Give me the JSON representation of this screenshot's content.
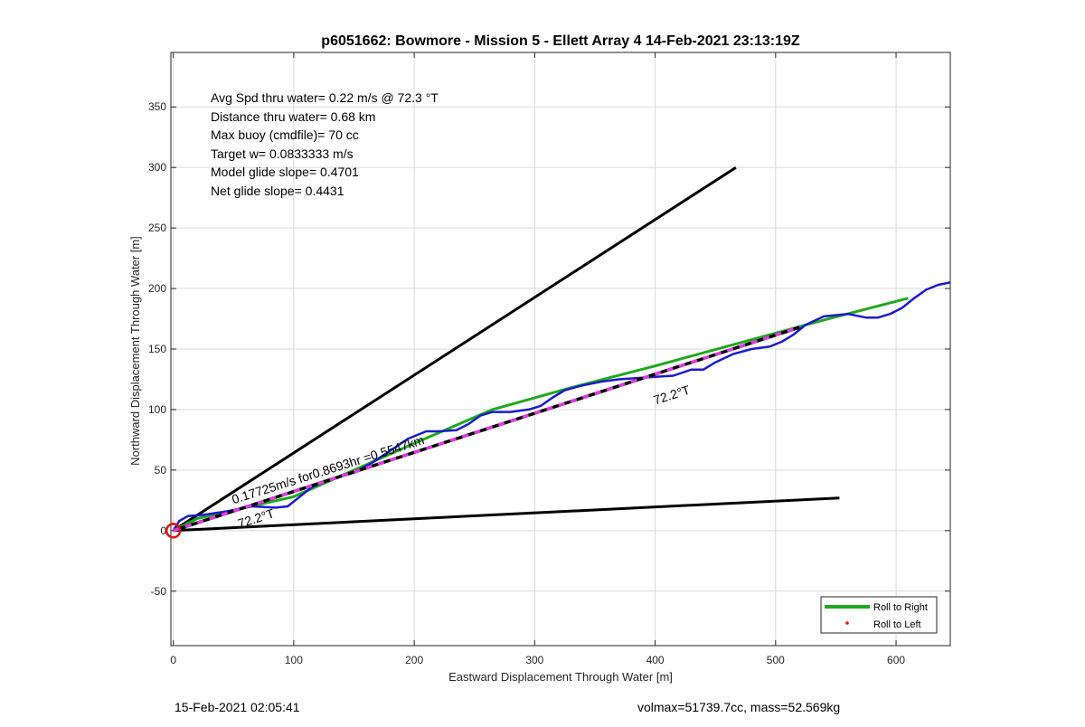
{
  "chart_data": {
    "type": "line",
    "title": "p6051662: Bowmore - Mission 5 - Ellett Array 4 14-Feb-2021 23:13:19Z",
    "xlabel": "Eastward Displacement Through Water [m]",
    "ylabel": "Northward Displacement Through Water [m]",
    "xlim": [
      -2,
      645
    ],
    "ylim": [
      -95,
      395
    ],
    "xticks": [
      0,
      100,
      200,
      300,
      400,
      500,
      600
    ],
    "yticks": [
      -50,
      0,
      50,
      100,
      150,
      200,
      250,
      300,
      350
    ],
    "grid": true,
    "info_lines": [
      "Avg Spd thru water=  0.22 m/s @  72.3 °T",
      "Distance thru water=  0.68 km",
      "Max buoy (cmdfile)= 70 cc",
      "Target w= 0.0833333 m/s",
      "Model glide slope= 0.4701",
      "Net glide slope= 0.4431"
    ],
    "series": [
      {
        "name": "Roll to Right",
        "color": "#1fa81f",
        "x": [
          0,
          20,
          100,
          200,
          265,
          330,
          400,
          470,
          540,
          610
        ],
        "y": [
          0,
          10,
          28,
          72,
          100,
          118,
          136,
          155,
          174,
          192
        ]
      },
      {
        "name": "Roll to Left",
        "color": "#e01010",
        "x": [],
        "y": []
      },
      {
        "color": "#1a1acc",
        "x": [
          0,
          5,
          12,
          25,
          45,
          65,
          85,
          95,
          105,
          115,
          130,
          150,
          165,
          180,
          195,
          210,
          220,
          235,
          245,
          255,
          265,
          280,
          295,
          305,
          315,
          325,
          340,
          355,
          370,
          385,
          400,
          415,
          430,
          440,
          450,
          465,
          480,
          495,
          505,
          515,
          525,
          540,
          560,
          575,
          585,
          595,
          605,
          615,
          625,
          635,
          645
        ],
        "y": [
          0,
          8,
          12,
          13,
          16,
          20,
          19,
          20,
          28,
          36,
          42,
          48,
          56,
          66,
          76,
          82,
          82,
          83,
          88,
          95,
          98,
          98,
          100,
          103,
          110,
          116,
          120,
          123,
          125,
          126,
          127,
          128,
          133,
          133,
          139,
          146,
          150,
          152,
          156,
          162,
          170,
          177,
          179,
          176,
          176,
          179,
          184,
          192,
          199,
          203,
          205
        ]
      },
      {
        "color": "#e03be0",
        "dashed": true,
        "x": [
          0,
          520
        ],
        "y": [
          0,
          168
        ]
      }
    ],
    "reference_lines": [
      {
        "x": [
          0,
          467
        ],
        "y": [
          0,
          300
        ],
        "color": "#000000"
      },
      {
        "x": [
          0,
          553
        ],
        "y": [
          0,
          27
        ],
        "color": "#000000"
      }
    ],
    "annotations": [
      {
        "text": "0.17725m/s for0.8693hr =0.5547km",
        "x": 50,
        "y": 22,
        "rotate": -17.5
      },
      {
        "text": "72.2°T",
        "x": 55,
        "y": 2,
        "rotate": -17.5
      },
      {
        "text": "72.2°T",
        "x": 400,
        "y": 104,
        "rotate": -17.5
      }
    ],
    "start_marker": {
      "x": 0,
      "y": 0,
      "color": "#e01010"
    },
    "legend": {
      "position": "bottom-right",
      "entries": [
        "Roll to Right",
        "Roll to Left"
      ]
    }
  },
  "footer": {
    "left": "15-Feb-2021 02:05:41",
    "right": "volmax=51739.7cc, mass=52.569kg"
  }
}
